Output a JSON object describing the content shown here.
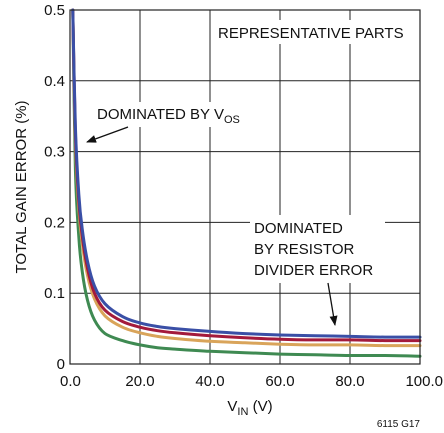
{
  "chart_data": {
    "type": "line",
    "title": "",
    "xlabel": "V",
    "xlabel_sub": "IN",
    "xlabel_unit": " (V)",
    "ylabel": "TOTAL GAIN ERROR (%)",
    "xlim": [
      0,
      100
    ],
    "ylim": [
      0,
      0.5
    ],
    "x_ticks": [
      "0.0",
      "20.0",
      "40.0",
      "60.0",
      "80.0",
      "100.0"
    ],
    "y_ticks": [
      "0",
      "0.1",
      "0.2",
      "0.3",
      "0.4",
      "0.5"
    ],
    "grid": true,
    "colors": [
      "#3a4fa6",
      "#a31a3c",
      "#d9a45a",
      "#3f8a52"
    ],
    "series": [
      {
        "color": "#3a4fa6",
        "x": [
          0.8,
          1.5,
          2.5,
          3.5,
          5,
          7,
          10,
          15,
          20,
          25,
          30,
          40,
          50,
          60,
          70,
          80,
          90,
          100
        ],
        "y": [
          0.5,
          0.34,
          0.24,
          0.19,
          0.145,
          0.11,
          0.085,
          0.067,
          0.058,
          0.053,
          0.05,
          0.046,
          0.043,
          0.041,
          0.04,
          0.039,
          0.038,
          0.038
        ]
      },
      {
        "color": "#a31a3c",
        "x": [
          0.8,
          1.5,
          2.5,
          3.5,
          5,
          7,
          10,
          15,
          20,
          25,
          30,
          40,
          50,
          60,
          70,
          80,
          90,
          100
        ],
        "y": [
          0.5,
          0.33,
          0.23,
          0.18,
          0.135,
          0.1,
          0.076,
          0.06,
          0.052,
          0.047,
          0.044,
          0.04,
          0.037,
          0.035,
          0.034,
          0.034,
          0.033,
          0.033
        ]
      },
      {
        "color": "#d9a45a",
        "x": [
          0.8,
          1.5,
          2.5,
          3.5,
          5,
          7,
          10,
          15,
          20,
          25,
          30,
          40,
          50,
          60,
          70,
          80,
          90,
          100
        ],
        "y": [
          0.5,
          0.32,
          0.22,
          0.17,
          0.125,
          0.092,
          0.068,
          0.052,
          0.044,
          0.039,
          0.036,
          0.032,
          0.03,
          0.028,
          0.027,
          0.027,
          0.026,
          0.026
        ]
      },
      {
        "color": "#3f8a52",
        "x": [
          0.8,
          1.5,
          2.5,
          3.5,
          5,
          7,
          10,
          15,
          20,
          25,
          30,
          40,
          50,
          60,
          70,
          80,
          90,
          100
        ],
        "y": [
          0.5,
          0.28,
          0.18,
          0.13,
          0.09,
          0.062,
          0.043,
          0.033,
          0.027,
          0.023,
          0.021,
          0.018,
          0.016,
          0.014,
          0.013,
          0.012,
          0.012,
          0.011
        ]
      }
    ],
    "annotations": {
      "parts": "REPRESENTATIVE PARTS",
      "vos_prefix": "DOMINATED BY V",
      "vos_sub": "OS",
      "divider_line1": "DOMINATED",
      "divider_line2": "BY RESISTOR",
      "divider_line3": "DIVIDER ERROR"
    },
    "figure_code": "6115 G17"
  }
}
